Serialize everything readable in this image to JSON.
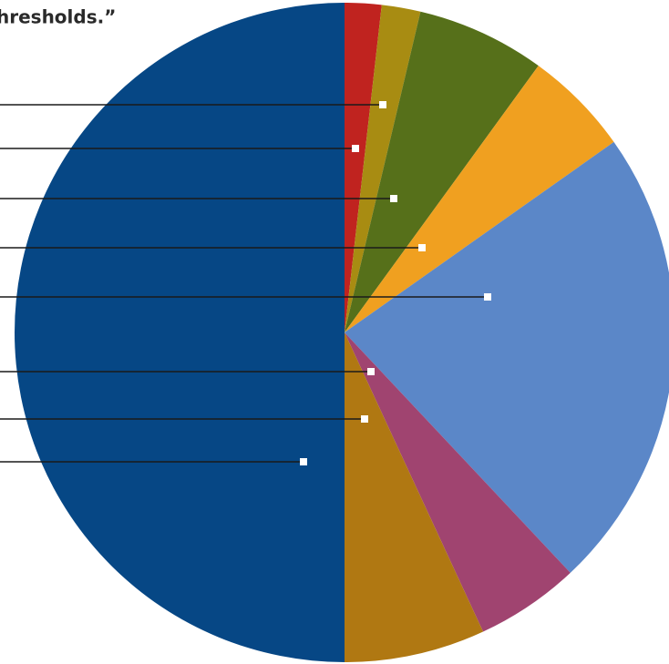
{
  "chart_data": {
    "type": "pie",
    "title": "hresholds.”",
    "categories": [
      null,
      null,
      null,
      null,
      null,
      null,
      null,
      null
    ],
    "values": [
      1.8,
      1.9,
      6.3,
      5.2,
      22.8,
      5.1,
      6.9,
      50
    ],
    "colors": [
      "#c0231f",
      "#a88c12",
      "#56701a",
      "#f0a020",
      "#5b87c8",
      "#a04470",
      "#b07812",
      "#064785"
    ]
  }
}
